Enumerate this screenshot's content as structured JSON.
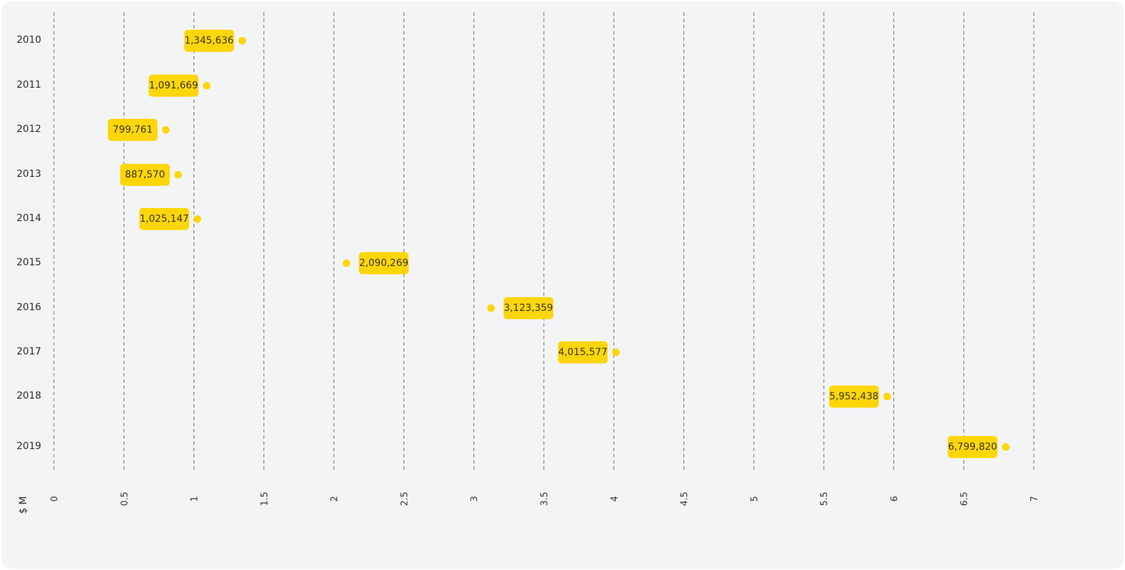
{
  "colors": {
    "background": "#f3f4f6",
    "accent": "#ffd60a",
    "grid": "#6b6b6b"
  },
  "chart_data": {
    "type": "scatter",
    "orientation": "horizontal",
    "unit_label": "$ M",
    "xlim": [
      0,
      7
    ],
    "x_ticks": [
      "0",
      "0.5",
      "1",
      "1.5",
      "2",
      "2.5",
      "3",
      "3.5",
      "4",
      "4.5",
      "5",
      "5.5",
      "6",
      "6.5",
      "7"
    ],
    "categories": [
      "2010",
      "2011",
      "2012",
      "2013",
      "2014",
      "2015",
      "2016",
      "2017",
      "2018",
      "2019"
    ],
    "values": [
      1.345636,
      1.091669,
      0.799761,
      0.88757,
      1.025147,
      2.090269,
      3.123359,
      4.015577,
      5.952438,
      6.79982
    ],
    "data_labels": [
      "1,345,636",
      "1,091,669",
      "799,761",
      "887,570",
      "1,025,147",
      "2,090,269",
      "3,123,359",
      "4,015,577",
      "5,952,438",
      "6,799,820"
    ],
    "label_side": [
      "left",
      "left",
      "left",
      "left",
      "left",
      "right",
      "right",
      "left",
      "left",
      "left"
    ],
    "grid": true,
    "grid_style": "dashed vertical",
    "legend": "none"
  }
}
